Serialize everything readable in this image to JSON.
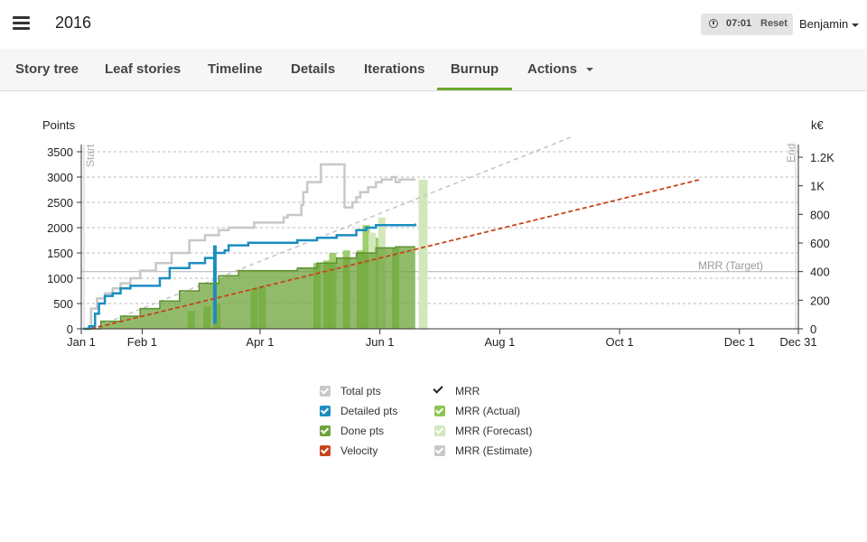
{
  "header": {
    "title": "2016",
    "timer_time": "07:01",
    "timer_reset": "Reset",
    "user": "Benjamin"
  },
  "tabs": [
    {
      "label": "Story tree"
    },
    {
      "label": "Leaf stories"
    },
    {
      "label": "Timeline"
    },
    {
      "label": "Details"
    },
    {
      "label": "Iterations"
    },
    {
      "label": "Burnup"
    },
    {
      "label": "Actions"
    }
  ],
  "chart_data": {
    "type": "line",
    "y_left_label": "Points",
    "y_right_label": "k€",
    "y_left_ticks": [
      0,
      500,
      1000,
      1500,
      2000,
      2500,
      3000,
      3500
    ],
    "y_left_range": [
      0,
      3500
    ],
    "y_right_ticks": [
      "0",
      "200",
      "400",
      "600",
      "800",
      "1K",
      "1.2K"
    ],
    "y_right_range": [
      0,
      1200
    ],
    "x_ticks": [
      "Jan 1",
      "Feb 1",
      "Apr 1",
      "Jun 1",
      "Aug 1",
      "Oct 1",
      "Dec 1",
      "Dec 31"
    ],
    "x_tick_days": [
      0,
      31,
      91,
      152,
      213,
      274,
      335,
      365
    ],
    "x_range_days": [
      0,
      365
    ],
    "start_label": "Start",
    "end_label": "End",
    "target_label": "MRR (Target)",
    "target_value_k": 400,
    "grid": true,
    "colors": {
      "total": "#c8c8c8",
      "detailed": "#1a8ec0",
      "done": "#6ea33a",
      "velocity": "#c8431a",
      "mrr_actual": "#8dc554",
      "mrr_forecast": "#d2e8ba",
      "mrr_estimate": "#c8c8c8"
    },
    "series": [
      {
        "name": "Total pts",
        "x": [
          1,
          5,
          8,
          12,
          16,
          20,
          25,
          30,
          38,
          46,
          55,
          63,
          70,
          75,
          88,
          103,
          105,
          110,
          112,
          113,
          115,
          120,
          122,
          128,
          134,
          138,
          140,
          142,
          146,
          150,
          153,
          158,
          160,
          162,
          170
        ],
        "y": [
          0,
          400,
          600,
          700,
          800,
          900,
          1000,
          1150,
          1300,
          1500,
          1750,
          1850,
          1950,
          2000,
          2100,
          2200,
          2250,
          2250,
          2450,
          2700,
          2900,
          2900,
          3250,
          3250,
          2400,
          2500,
          2600,
          2700,
          2800,
          2900,
          2950,
          3000,
          2900,
          2950,
          2950
        ]
      },
      {
        "name": "Detailed pts",
        "x": [
          1,
          4,
          7,
          9,
          12,
          16,
          20,
          25,
          30,
          40,
          45,
          55,
          63,
          68,
          73,
          75,
          85,
          100,
          110,
          115,
          120,
          130,
          140,
          145,
          150,
          155,
          170
        ],
        "y": [
          0,
          50,
          300,
          500,
          650,
          700,
          800,
          850,
          850,
          1000,
          1200,
          1300,
          1400,
          1500,
          1550,
          1650,
          1700,
          1700,
          1750,
          1750,
          1800,
          1850,
          1950,
          2000,
          2050,
          2050,
          2080
        ]
      },
      {
        "name": "Done pts",
        "x": [
          1,
          10,
          20,
          30,
          40,
          50,
          60,
          70,
          80,
          100,
          110,
          120,
          130,
          140,
          150,
          160,
          170
        ],
        "y": [
          0,
          150,
          250,
          400,
          550,
          750,
          900,
          1050,
          1150,
          1150,
          1200,
          1300,
          1400,
          1500,
          1600,
          1620,
          1620
        ]
      },
      {
        "name": "Velocity",
        "x": [
          5,
          315
        ],
        "y": [
          0,
          2950
        ]
      }
    ],
    "estimate_trend": {
      "name": "MRR (Estimate)",
      "x": [
        5,
        250
      ],
      "y": [
        0,
        3800
      ]
    },
    "mrr_actual_bars": {
      "x": [
        56,
        64,
        69,
        88,
        92,
        120,
        125,
        128,
        135,
        142,
        145,
        150,
        160
      ],
      "y": [
        350,
        450,
        500,
        800,
        850,
        1300,
        1350,
        1500,
        1550,
        1550,
        2050,
        1800,
        1600
      ]
    },
    "mrr_forecast_bars": {
      "x": [
        148,
        153
      ],
      "y": [
        1900,
        2200
      ]
    },
    "mrr_estimate_bar": {
      "x": 174,
      "y": 2950
    },
    "detailed_spike": {
      "x": 68,
      "y_from": 100,
      "y_to": 1650
    },
    "legend": [
      {
        "label": "Total pts",
        "color": "#c8c8c8",
        "kind": "box"
      },
      {
        "label": "Detailed pts",
        "color": "#1a8ec0",
        "kind": "box"
      },
      {
        "label": "Done pts",
        "color": "#6ea33a",
        "kind": "box"
      },
      {
        "label": "Velocity",
        "color": "#c8431a",
        "kind": "box"
      },
      {
        "label": "MRR",
        "color": "#222222",
        "kind": "check"
      },
      {
        "label": "MRR (Actual)",
        "color": "#8dc554",
        "kind": "box"
      },
      {
        "label": "MRR (Forecast)",
        "color": "#d2e8ba",
        "kind": "box"
      },
      {
        "label": "MRR (Estimate)",
        "color": "#c8c8c8",
        "kind": "box"
      }
    ]
  }
}
